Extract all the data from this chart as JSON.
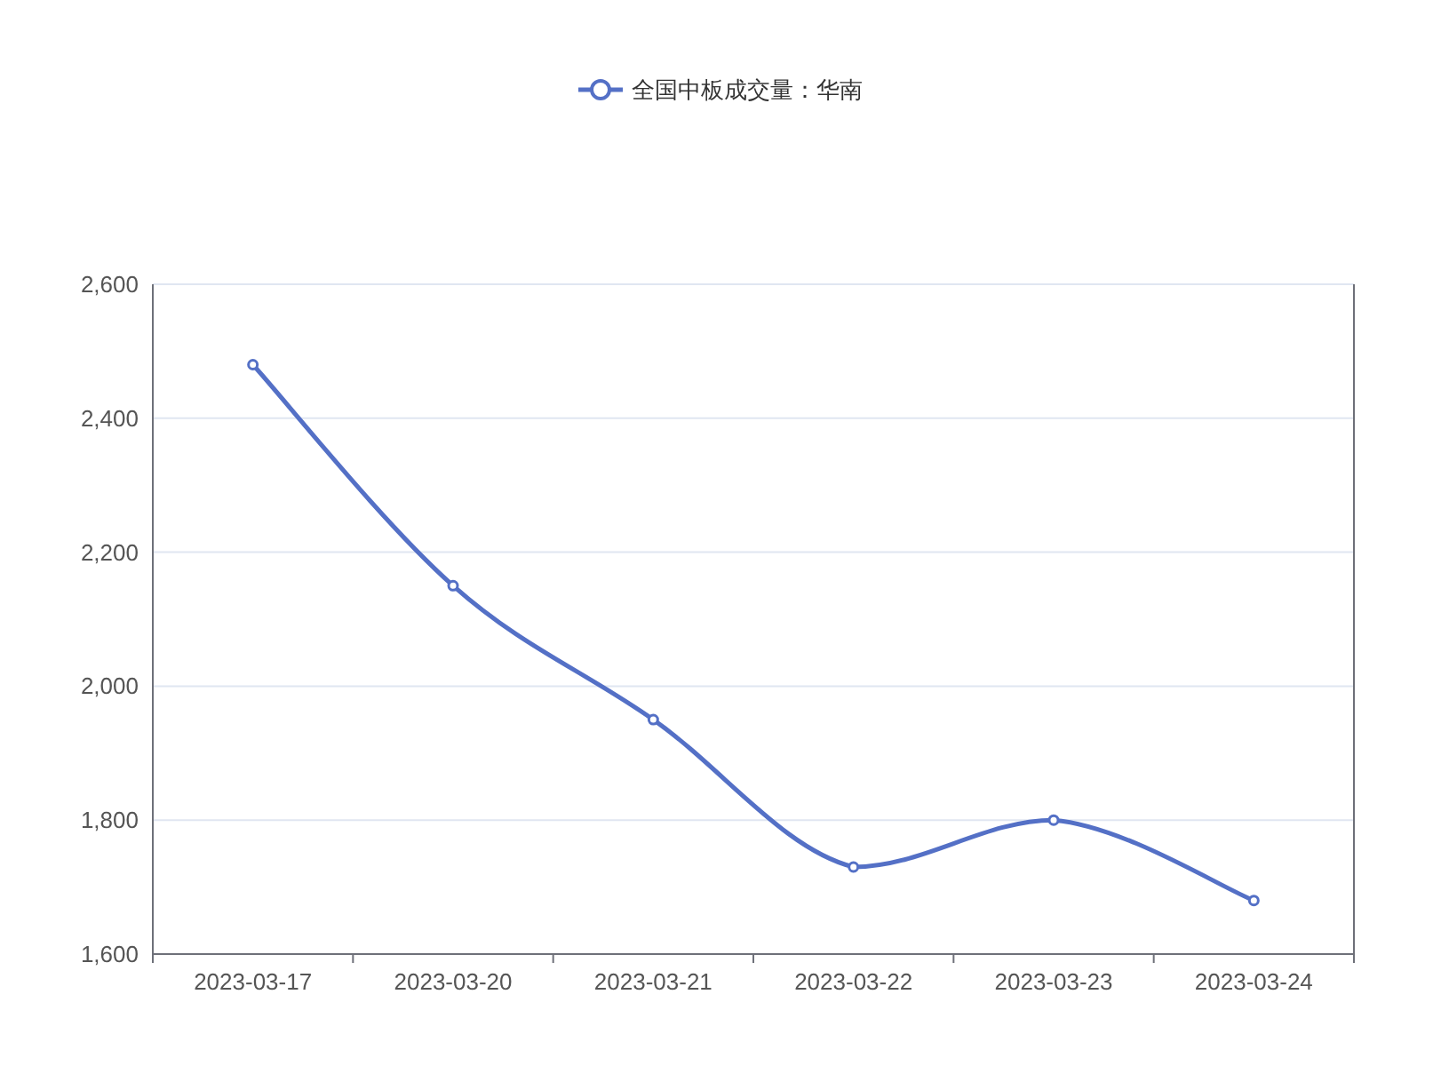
{
  "chart_data": {
    "type": "line",
    "categories": [
      "2023-03-17",
      "2023-03-20",
      "2023-03-21",
      "2023-03-22",
      "2023-03-23",
      "2023-03-24"
    ],
    "series": [
      {
        "name": "全国中板成交量：华南",
        "color": "#5470c6",
        "values": [
          2480,
          2150,
          1950,
          1730,
          1800,
          1680
        ]
      }
    ],
    "ylim": [
      1600,
      2600
    ],
    "yticks": [
      {
        "value": 1600,
        "label": "1,600"
      },
      {
        "value": 1800,
        "label": "1,800"
      },
      {
        "value": 2000,
        "label": "2,000"
      },
      {
        "value": 2200,
        "label": "2,200"
      },
      {
        "value": 2400,
        "label": "2,400"
      },
      {
        "value": 2600,
        "label": "2,600"
      }
    ],
    "grid": "y",
    "legend": "top",
    "marker": "circle",
    "line_style": "solid"
  }
}
